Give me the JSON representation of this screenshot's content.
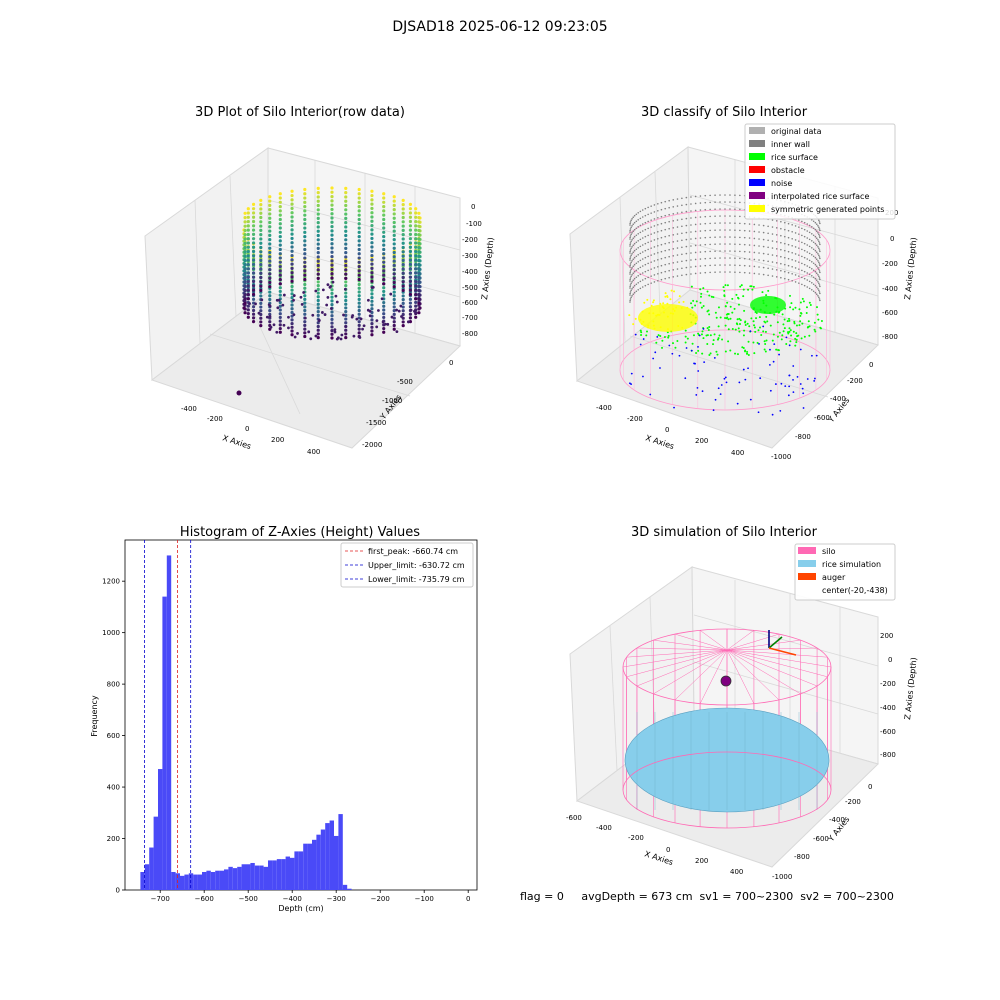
{
  "figure": {
    "suptitle": "DJSAD18 2025-06-12 09:23:05",
    "status_text": "flag = 0     avgDepth = 673 cm  sv1 = 700~2300  sv2 = 700~2300"
  },
  "colors": {
    "hist_bar": "#4a4af7",
    "first_peak_line": "#e02020",
    "limit_line": "#0000cc",
    "silo": "#ff69b4",
    "rice_simulation": "#87ceeb",
    "auger": "#ff4500",
    "original_data": "#b0b0b0",
    "inner_wall": "#808080",
    "rice_surface": "#00ff00",
    "obstacle": "#ff0000",
    "noise": "#0000ff",
    "interpolated_rice_surface": "#800080",
    "symmetric_generated_points": "#ffff00",
    "pane": "#f2f2f2",
    "grid": "#d9d9d9"
  },
  "chart_data": [
    {
      "type": "scatter",
      "projection": "3d",
      "title": "3D Plot of Silo Interior(row data)",
      "xlabel": "X Axies",
      "ylabel": "Y Axies",
      "zlabel": "Z Axies (Depth)",
      "x_ticks": [
        "-400",
        "-200",
        "0",
        "200",
        "400"
      ],
      "y_ticks": [
        "0",
        "-500",
        "-1000",
        "-1500",
        "-2000"
      ],
      "z_ticks": [
        "0",
        "-100",
        "-200",
        "-300",
        "-400",
        "-500",
        "-600",
        "-700",
        "-800"
      ],
      "colormap": "viridis",
      "grid": true
    },
    {
      "type": "scatter",
      "projection": "3d",
      "title": "3D classify of Silo Interior",
      "xlabel": "X Axies",
      "ylabel": "Y Axies",
      "zlabel": "Z Axies (Depth)",
      "x_ticks": [
        "-400",
        "-200",
        "0",
        "200",
        "400"
      ],
      "y_ticks": [
        "0",
        "-200",
        "-400",
        "-600",
        "-800",
        "-1000"
      ],
      "z_ticks": [
        "200",
        "0",
        "-200",
        "-400",
        "-600",
        "-800"
      ],
      "legend_position": "top-right",
      "legend": [
        {
          "label": "original data",
          "color": "#b0b0b0"
        },
        {
          "label": "inner wall",
          "color": "#808080"
        },
        {
          "label": "rice surface",
          "color": "#00ff00"
        },
        {
          "label": "obstacle",
          "color": "#ff0000"
        },
        {
          "label": "noise",
          "color": "#0000ff"
        },
        {
          "label": "interpolated rice surface",
          "color": "#800080"
        },
        {
          "label": "symmetric generated points",
          "color": "#ffff00"
        }
      ],
      "grid": true
    },
    {
      "type": "bar",
      "title": "Histogram of Z-Axies (Height) Values",
      "xlabel": "Depth (cm)",
      "ylabel": "Frequency",
      "xlim": [
        -780,
        20
      ],
      "ylim": [
        0,
        1360
      ],
      "x_ticks": [
        -700,
        -600,
        -500,
        -400,
        -300,
        -200,
        -100,
        0
      ],
      "y_ticks": [
        0,
        200,
        400,
        600,
        800,
        1000,
        1200
      ],
      "bin_width": 10,
      "bin_start": -745,
      "values": [
        70,
        100,
        165,
        285,
        470,
        1140,
        1300,
        70,
        65,
        55,
        60,
        65,
        60,
        60,
        70,
        75,
        70,
        75,
        75,
        80,
        90,
        85,
        90,
        100,
        100,
        105,
        95,
        95,
        90,
        115,
        115,
        120,
        120,
        130,
        125,
        150,
        150,
        180,
        180,
        195,
        215,
        235,
        260,
        270,
        210,
        295,
        20,
        5
      ],
      "reference_lines": [
        {
          "label": "first_peak: -660.74 cm",
          "x": -660.74,
          "color": "#e02020"
        },
        {
          "label": "Upper_limit: -630.72 cm",
          "x": -630.72,
          "color": "#0000cc"
        },
        {
          "label": "Lower_limit: -735.79 cm",
          "x": -735.79,
          "color": "#0000cc"
        }
      ],
      "legend_position": "top-right",
      "grid": false
    },
    {
      "type": "surface",
      "projection": "3d",
      "title": "3D simulation of Silo Interior",
      "xlabel": "X Axies",
      "ylabel": "Y Axies",
      "zlabel": "Z Axies (Depth)",
      "x_ticks": [
        "-600",
        "-400",
        "-200",
        "0",
        "200",
        "400"
      ],
      "y_ticks": [
        "0",
        "-200",
        "-400",
        "-600",
        "-800",
        "-1000"
      ],
      "z_ticks": [
        "200",
        "0",
        "-200",
        "-400",
        "-600",
        "-800"
      ],
      "legend_position": "top-right",
      "legend": [
        {
          "label": "silo",
          "color": "#ff69b4"
        },
        {
          "label": "rice simulation",
          "color": "#87ceeb"
        },
        {
          "label": "auger",
          "color": "#ff4500"
        },
        {
          "label": "center(-20,-438)",
          "color": ""
        }
      ],
      "grid": true
    }
  ]
}
